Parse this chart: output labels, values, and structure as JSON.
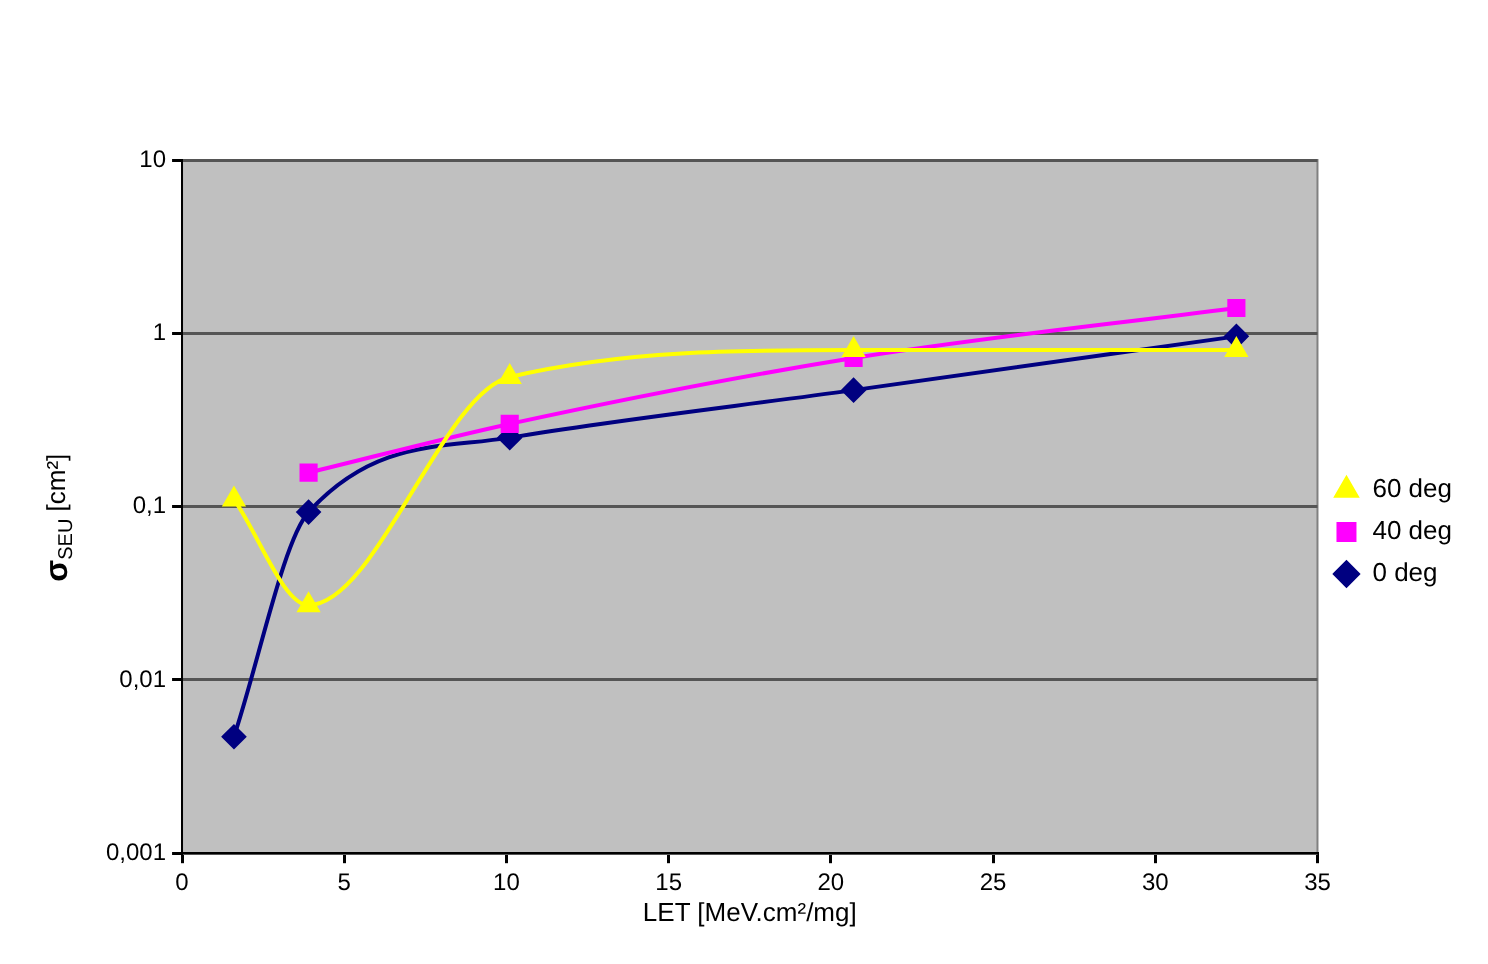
{
  "chart_data": {
    "type": "line",
    "xlabel": "LET [MeV.cm²/mg]",
    "ylabel": "σ$_{SEU}$ [cm²]",
    "xlim": [
      0,
      35
    ],
    "xticks": [
      0,
      5,
      10,
      15,
      20,
      25,
      30,
      35
    ],
    "ylim": [
      0.001,
      10
    ],
    "yticks": [
      {
        "value": 0.001,
        "label": "0,001"
      },
      {
        "value": 0.01,
        "label": "0,01"
      },
      {
        "value": 0.1,
        "label": "0,1"
      },
      {
        "value": 1,
        "label": "1"
      },
      {
        "value": 10,
        "label": "10"
      }
    ],
    "log": "y",
    "grid": "y",
    "legend": "right",
    "series": [
      {
        "name": "0 deg",
        "color": "#000080",
        "marker": "diamond",
        "x": [
          1.6,
          3.9,
          10.1,
          20.7,
          32.5
        ],
        "values": [
          0.0047,
          0.093,
          0.25,
          0.47,
          0.96
        ]
      },
      {
        "name": "40 deg",
        "color": "#ff00ff",
        "marker": "square",
        "x": [
          3.9,
          10.1,
          20.7,
          32.5
        ],
        "values": [
          0.157,
          0.3,
          0.72,
          1.4
        ]
      },
      {
        "name": "60 deg",
        "color": "#ffff00",
        "marker": "triangle",
        "x": [
          1.6,
          3.9,
          10.1,
          20.7,
          32.5
        ],
        "values": [
          0.11,
          0.027,
          0.56,
          0.8,
          0.8
        ]
      }
    ]
  }
}
